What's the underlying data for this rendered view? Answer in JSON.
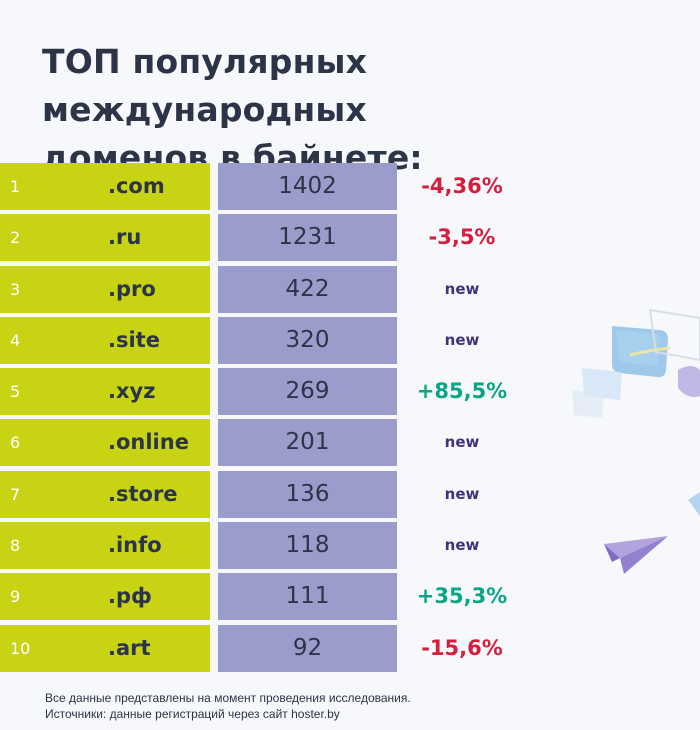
{
  "header": {
    "title_line1": "ТОП популярных международных",
    "title_line2": "доменов в байнете:"
  },
  "table": {
    "rows": [
      {
        "rank": "1",
        "domain": ".com",
        "count": "1402",
        "change": "-4,36%",
        "type": "neg"
      },
      {
        "rank": "2",
        "domain": ".ru",
        "count": "1231",
        "change": "-3,5%",
        "type": "neg"
      },
      {
        "rank": "3",
        "domain": ".pro",
        "count": "422",
        "change": "new",
        "type": "new"
      },
      {
        "rank": "4",
        "domain": ".site",
        "count": "320",
        "change": "new",
        "type": "new"
      },
      {
        "rank": "5",
        "domain": ".xyz",
        "count": "269",
        "change": "+85,5%",
        "type": "pos"
      },
      {
        "rank": "6",
        "domain": ".online",
        "count": "201",
        "change": "new",
        "type": "new"
      },
      {
        "rank": "7",
        "domain": ".store",
        "count": "136",
        "change": "new",
        "type": "new"
      },
      {
        "rank": "8",
        "domain": ".info",
        "count": "118",
        "change": "new",
        "type": "new"
      },
      {
        "rank": "9",
        "domain": ".рф",
        "count": "111",
        "change": "+35,3%",
        "type": "pos"
      },
      {
        "rank": "10",
        "domain": ".art",
        "count": "92",
        "change": "-15,6%",
        "type": "neg"
      }
    ]
  },
  "footer": {
    "line1": "Все данные представлены на момент проведения исследования.",
    "line2": "Источники: данные регистраций через сайт hoster.by"
  },
  "colors": {
    "rank_bg": "#c7d313",
    "count_bg": "#9a9ccc",
    "negative": "#d41e3d",
    "positive": "#0aa587",
    "new": "#40337a",
    "text_dark": "#2c3448"
  },
  "illustration": {
    "icons": [
      "chat-bubbles-icon",
      "paper-plane-icon"
    ]
  }
}
